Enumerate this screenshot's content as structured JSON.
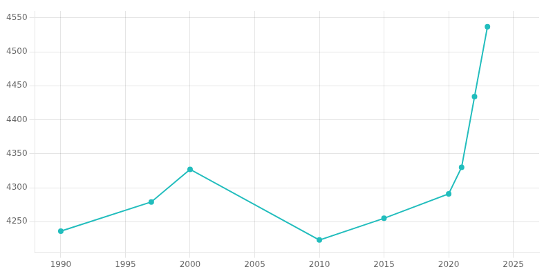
{
  "chart_data": {
    "type": "line",
    "x": [
      1990,
      1997,
      2000,
      2010,
      2015,
      2020,
      2021,
      2022,
      2023
    ],
    "values": [
      4236,
      4279,
      4327,
      4223,
      4255,
      4291,
      4330,
      4434,
      4537
    ],
    "color": "#22BDBD",
    "marker": "circle",
    "xlim": [
      1988,
      2027
    ],
    "ylim": [
      4205,
      4560
    ],
    "xticks": [
      1990,
      1995,
      2000,
      2005,
      2010,
      2015,
      2020,
      2025
    ],
    "yticks": [
      4250,
      4300,
      4350,
      4400,
      4450,
      4500,
      4550
    ],
    "grid": true
  }
}
